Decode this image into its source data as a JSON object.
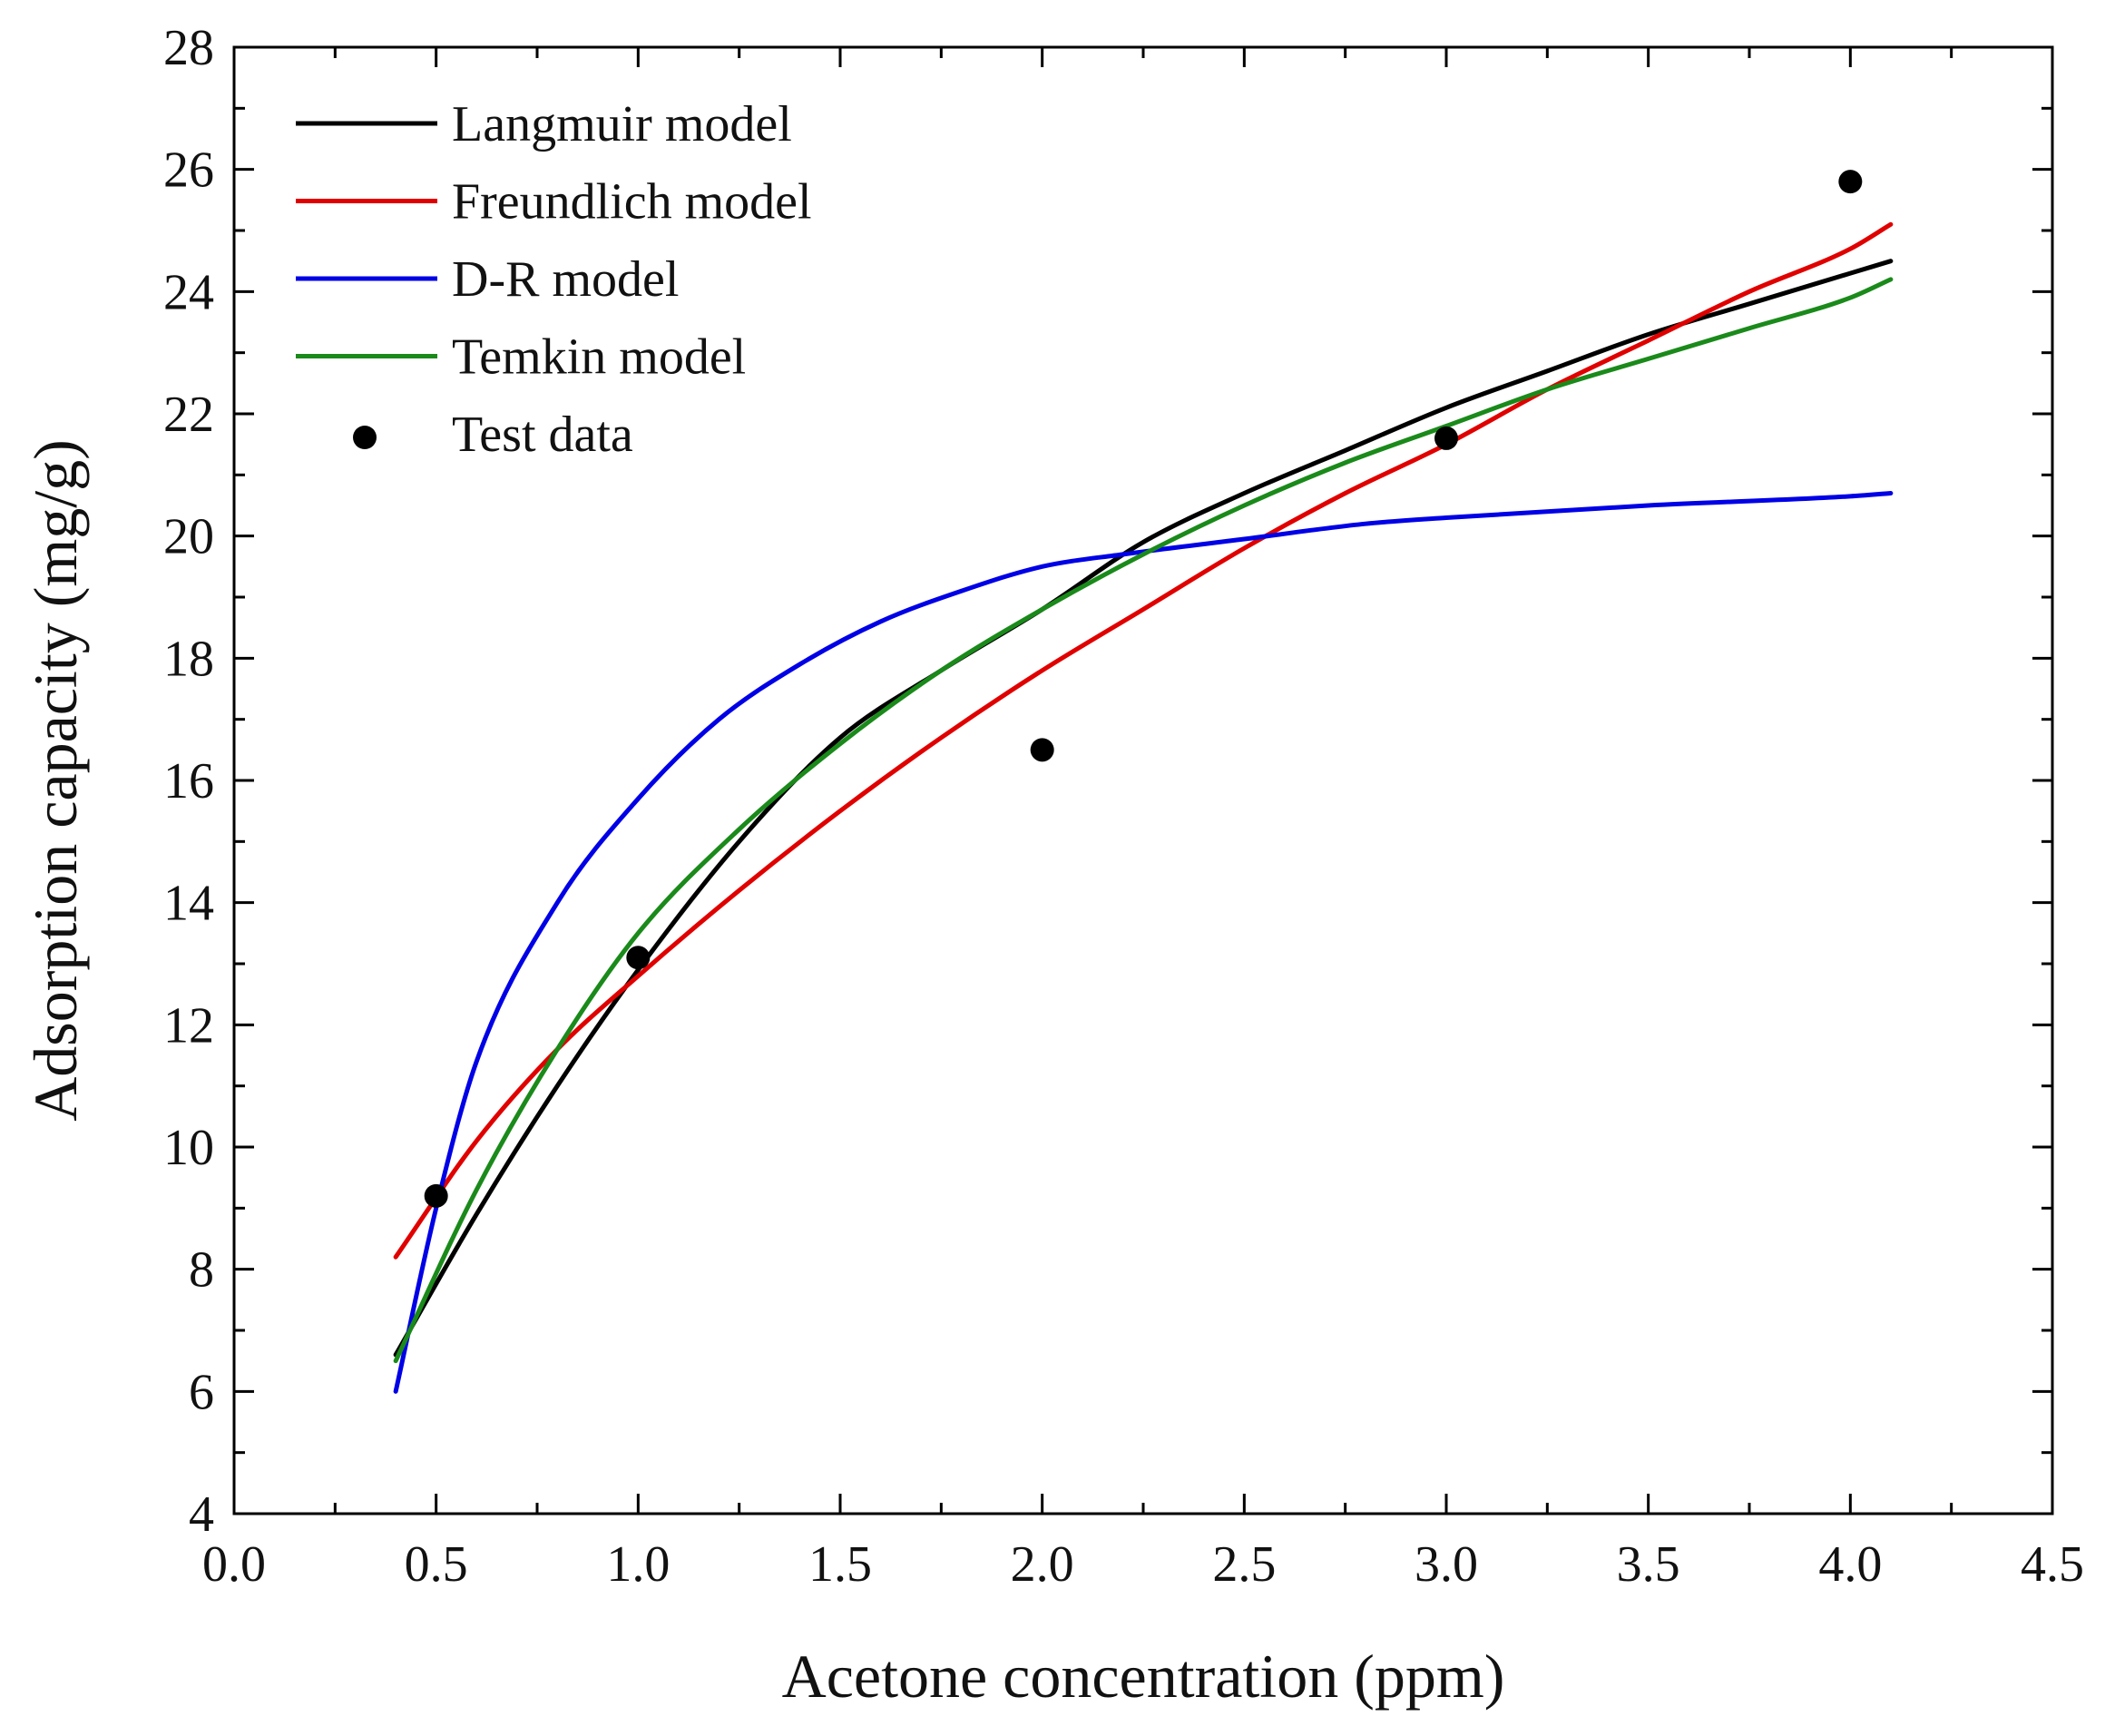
{
  "chart_data": {
    "type": "line",
    "title": "",
    "xlabel": "Acetone concentration (ppm)",
    "ylabel": "Adsorption capacity (mg/g)",
    "xlim": [
      0.0,
      4.5
    ],
    "ylim": [
      4,
      28
    ],
    "x_ticks": [
      "0.0",
      "0.5",
      "1.0",
      "1.5",
      "2.0",
      "2.5",
      "3.0",
      "3.5",
      "4.0",
      "4.5"
    ],
    "y_ticks": [
      "4",
      "6",
      "8",
      "10",
      "12",
      "14",
      "16",
      "18",
      "20",
      "22",
      "24",
      "26",
      "28"
    ],
    "legend_position": "top-left",
    "grid": false,
    "series": [
      {
        "name": "Langmuir model",
        "color": "#000000",
        "kind": "line",
        "x": [
          0.4,
          0.6,
          0.8,
          1.0,
          1.25,
          1.5,
          1.75,
          2.0,
          2.25,
          2.5,
          2.75,
          3.0,
          3.25,
          3.5,
          3.75,
          4.0,
          4.1
        ],
        "y": [
          6.6,
          8.9,
          11.0,
          12.9,
          15.0,
          16.7,
          17.8,
          18.8,
          19.9,
          20.7,
          21.4,
          22.1,
          22.7,
          23.3,
          23.8,
          24.3,
          24.5
        ]
      },
      {
        "name": "Freundlich model",
        "color": "#e00000",
        "kind": "line",
        "x": [
          0.4,
          0.6,
          0.8,
          1.0,
          1.25,
          1.5,
          1.75,
          2.0,
          2.25,
          2.5,
          2.75,
          3.0,
          3.25,
          3.5,
          3.75,
          4.0,
          4.1
        ],
        "y": [
          8.2,
          10.1,
          11.6,
          12.8,
          14.2,
          15.5,
          16.7,
          17.8,
          18.8,
          19.8,
          20.7,
          21.5,
          22.4,
          23.2,
          24.0,
          24.7,
          25.1
        ]
      },
      {
        "name": "D-R model",
        "color": "#0000e6",
        "kind": "line",
        "x": [
          0.4,
          0.5,
          0.6,
          0.8,
          1.0,
          1.2,
          1.4,
          1.6,
          1.8,
          2.0,
          2.2,
          2.5,
          2.8,
          3.0,
          3.5,
          4.0,
          4.1
        ],
        "y": [
          6.0,
          9.0,
          11.4,
          14.0,
          15.7,
          17.0,
          17.9,
          18.6,
          19.1,
          19.5,
          19.7,
          19.95,
          20.2,
          20.3,
          20.5,
          20.65,
          20.7
        ]
      },
      {
        "name": "Temkin model",
        "color": "#1a8a1a",
        "kind": "line",
        "x": [
          0.4,
          0.6,
          0.8,
          1.0,
          1.25,
          1.5,
          1.75,
          2.0,
          2.25,
          2.5,
          2.75,
          3.0,
          3.25,
          3.5,
          3.75,
          4.0,
          4.1
        ],
        "y": [
          6.5,
          9.3,
          11.6,
          13.5,
          15.2,
          16.6,
          17.8,
          18.8,
          19.7,
          20.5,
          21.2,
          21.8,
          22.4,
          22.9,
          23.4,
          23.9,
          24.2
        ]
      },
      {
        "name": "Test data",
        "color": "#000000",
        "kind": "scatter",
        "x": [
          0.5,
          1.0,
          2.0,
          3.0,
          4.0
        ],
        "y": [
          9.2,
          13.1,
          16.5,
          21.6,
          25.8
        ]
      }
    ]
  }
}
